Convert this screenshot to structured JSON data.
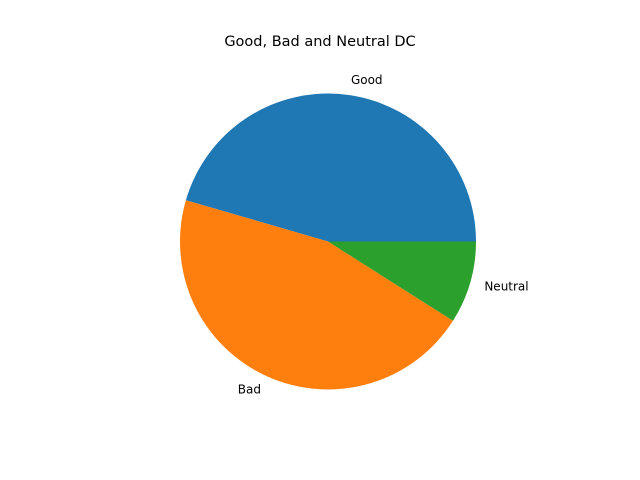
{
  "chart_data": {
    "type": "pie",
    "title": "Good, Bad and Neutral DC",
    "labels": [
      "Good",
      "Bad",
      "Neutral"
    ],
    "values": [
      45.5,
      45.5,
      9.0
    ],
    "colors": [
      "#1f77b4",
      "#ff7f0e",
      "#2ca02c"
    ],
    "start_angle_deg": 0,
    "direction": "counterclockwise",
    "legend": "none"
  }
}
